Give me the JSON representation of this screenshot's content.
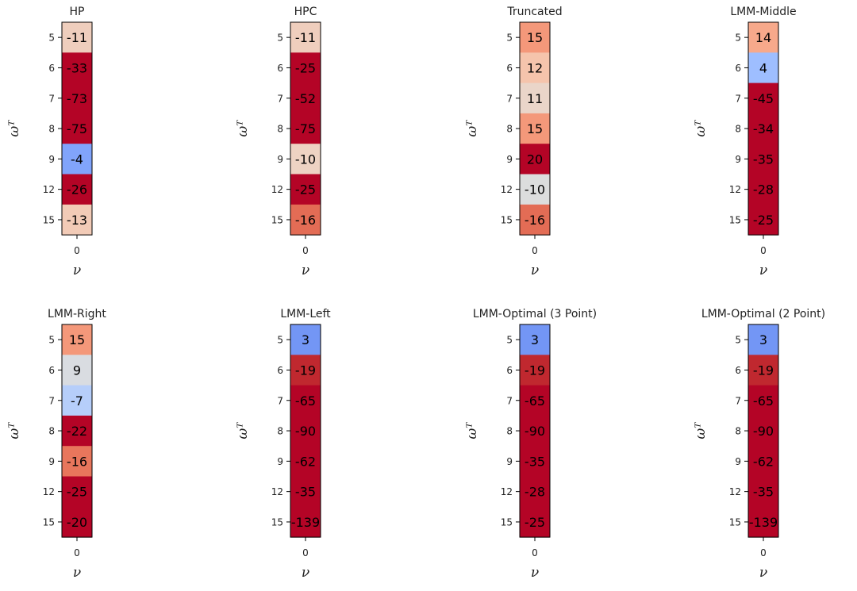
{
  "chart_data": [
    {
      "type": "heatmap",
      "title": "HP",
      "xlabel": "ν",
      "ylabel": "ωᵀ",
      "x_ticks": [
        "0"
      ],
      "y_ticks": [
        "5",
        "6",
        "7",
        "8",
        "9",
        "12",
        "15"
      ],
      "values": [
        -11,
        -33,
        -73,
        -75,
        -4,
        -26,
        -13
      ],
      "colors": [
        "#efcebd",
        "#b40426",
        "#b40426",
        "#b40426",
        "#81a4fb",
        "#b40426",
        "#f2cbb7"
      ]
    },
    {
      "type": "heatmap",
      "title": "HPC",
      "xlabel": "ν",
      "ylabel": "ωᵀ",
      "x_ticks": [
        "0"
      ],
      "y_ticks": [
        "5",
        "6",
        "7",
        "8",
        "9",
        "12",
        "15"
      ],
      "values": [
        -11,
        -25,
        -52,
        -75,
        -10,
        -25,
        -16
      ],
      "colors": [
        "#efcebd",
        "#b40426",
        "#b40426",
        "#b40426",
        "#eed3c3",
        "#b40426",
        "#e36c55"
      ]
    },
    {
      "type": "heatmap",
      "title": "Truncated",
      "xlabel": "ν",
      "ylabel": "ωᵀ",
      "x_ticks": [
        "0"
      ],
      "y_ticks": [
        "5",
        "6",
        "7",
        "8",
        "9",
        "12",
        "15"
      ],
      "values": [
        15,
        12,
        11,
        15,
        20,
        -10,
        -16
      ],
      "colors": [
        "#f4987a",
        "#f5c4ac",
        "#ead5c9",
        "#f4987a",
        "#b40426",
        "#dcdddd",
        "#e36c55"
      ]
    },
    {
      "type": "heatmap",
      "title": "LMM-Middle",
      "xlabel": "ν",
      "ylabel": "ωᵀ",
      "x_ticks": [
        "0"
      ],
      "y_ticks": [
        "5",
        "6",
        "7",
        "8",
        "9",
        "12",
        "15"
      ],
      "values": [
        14,
        4,
        -45,
        -34,
        -35,
        -28,
        -25
      ],
      "colors": [
        "#f7a98b",
        "#9ebeff",
        "#b40426",
        "#b40426",
        "#b40426",
        "#b40426",
        "#b40426"
      ]
    },
    {
      "type": "heatmap",
      "title": "LMM-Right",
      "xlabel": "ν",
      "ylabel": "ωᵀ",
      "x_ticks": [
        "0"
      ],
      "y_ticks": [
        "5",
        "6",
        "7",
        "8",
        "9",
        "12",
        "15"
      ],
      "values": [
        15,
        9,
        -7,
        -22,
        -16,
        -25,
        -20
      ],
      "colors": [
        "#f4987a",
        "#d9dce1",
        "#b6cefa",
        "#b40426",
        "#e8765c",
        "#b40426",
        "#b40426"
      ]
    },
    {
      "type": "heatmap",
      "title": "LMM-Left",
      "xlabel": "ν",
      "ylabel": "ωᵀ",
      "x_ticks": [
        "0"
      ],
      "y_ticks": [
        "5",
        "6",
        "7",
        "8",
        "9",
        "12",
        "15"
      ],
      "values": [
        3,
        -19,
        -65,
        -90,
        -62,
        -35,
        -139
      ],
      "colors": [
        "#7396f5",
        "#c0282f",
        "#b40426",
        "#b40426",
        "#b40426",
        "#b40426",
        "#b40426"
      ]
    },
    {
      "type": "heatmap",
      "title": "LMM-Optimal (3 Point)",
      "xlabel": "ν",
      "ylabel": "ωᵀ",
      "x_ticks": [
        "0"
      ],
      "y_ticks": [
        "5",
        "6",
        "7",
        "8",
        "9",
        "12",
        "15"
      ],
      "values": [
        3,
        -19,
        -65,
        -90,
        -35,
        -28,
        -25
      ],
      "colors": [
        "#7396f5",
        "#c0282f",
        "#b40426",
        "#b40426",
        "#b40426",
        "#b40426",
        "#b40426"
      ]
    },
    {
      "type": "heatmap",
      "title": "LMM-Optimal (2 Point)",
      "xlabel": "ν",
      "ylabel": "ωᵀ",
      "x_ticks": [
        "0"
      ],
      "y_ticks": [
        "5",
        "6",
        "7",
        "8",
        "9",
        "12",
        "15"
      ],
      "values": [
        3,
        -19,
        -65,
        -90,
        -62,
        -35,
        -139
      ],
      "colors": [
        "#7396f5",
        "#c0282f",
        "#b40426",
        "#b40426",
        "#b40426",
        "#b40426",
        "#b40426"
      ]
    }
  ]
}
